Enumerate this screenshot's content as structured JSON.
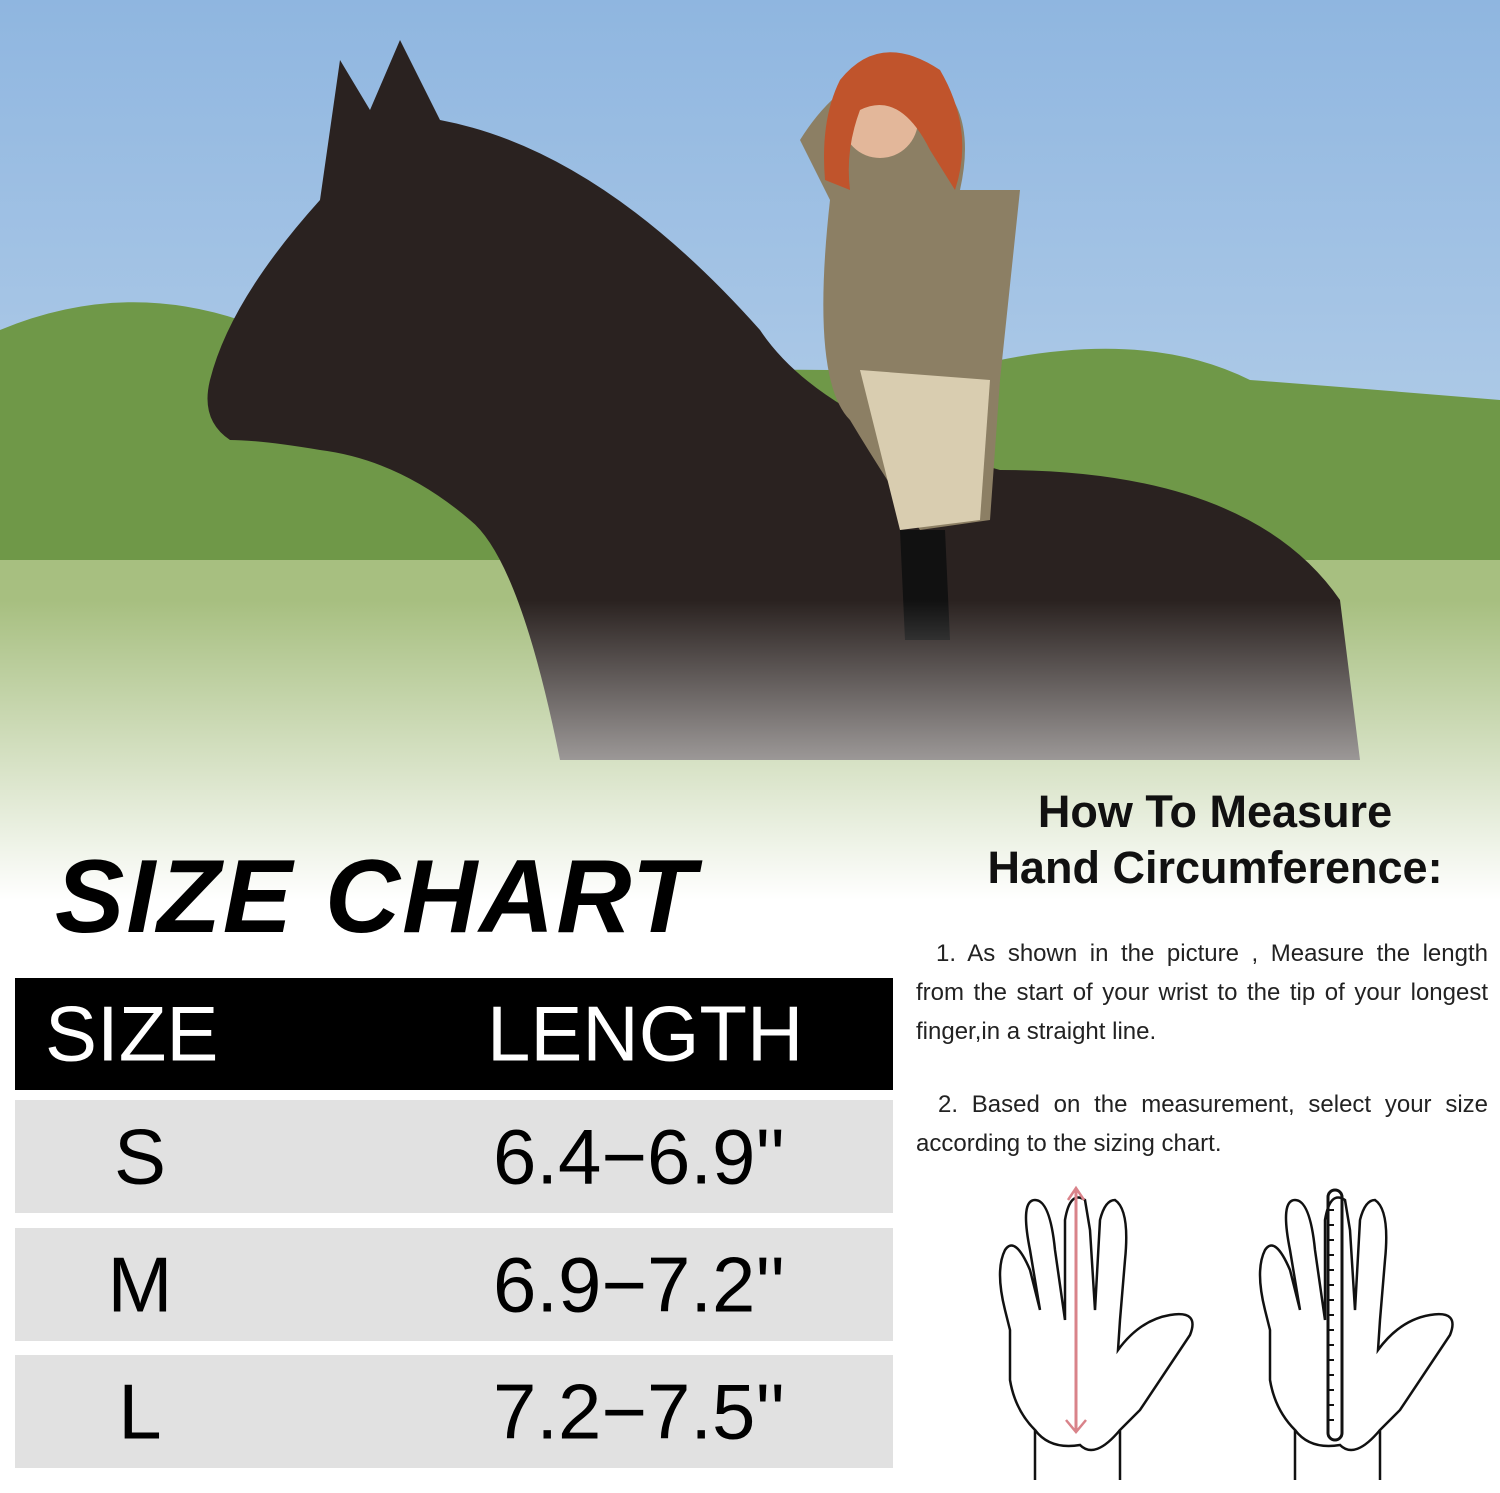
{
  "size_chart": {
    "title": "SIZE CHART",
    "headers": [
      "SIZE",
      "LENGTH"
    ],
    "rows": [
      {
        "size": "S",
        "length": "6.4−6.9''"
      },
      {
        "size": "M",
        "length": "6.9−7.2''"
      },
      {
        "size": "L",
        "length": "7.2−7.5''"
      }
    ],
    "header_color": "#000000",
    "row_color": "#e1e1e1"
  },
  "measure": {
    "title_line1": "How To Measure",
    "title_line2": "Hand Circumference:",
    "step1": "1. As shown in the picture , Measure the length from the start of your wrist to the tip of your longest finger,in a straight line.",
    "step2": "2. Based on the measurement, select your size according to the sizing chart.",
    "arrow_color": "#d9838a"
  },
  "photo": {
    "subject": "rider-on-horse-photo"
  }
}
